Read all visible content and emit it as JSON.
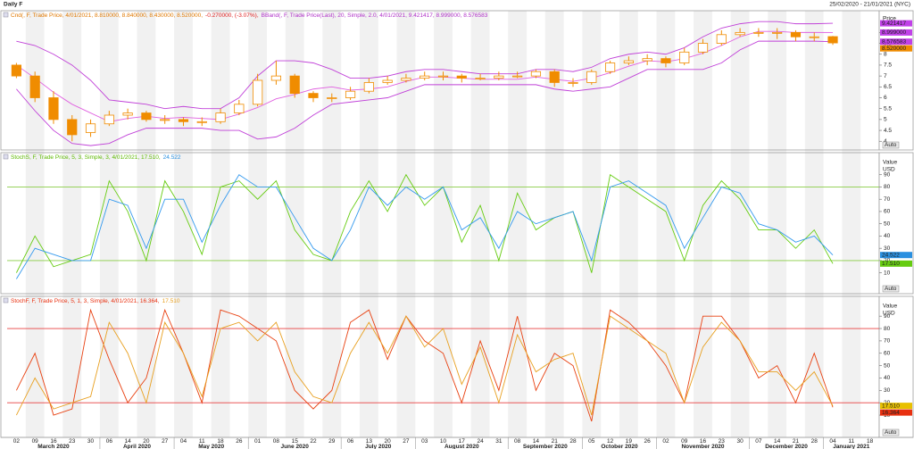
{
  "header": {
    "title": "Daily F",
    "range": "25/02/2020 - 21/01/2021 (NYC)"
  },
  "chart_data": [
    {
      "type": "candlestick",
      "legend": [
        {
          "text": "Cnd(, F, Trade Price,  4/01/2021, 8.810000, 8.840000, 8.430000, 8.520000,",
          "color": "#e07800"
        },
        {
          "text": "-0.270000, (-3.07%),",
          "color": "#e02020"
        },
        {
          "text": "BBand(, F, Trade Price(Last),  20, Simple, 2.0,  4/01/2021, 9.421417, 8.999000, 8.576583",
          "color": "#b030c8"
        }
      ],
      "axis_label": "Price",
      "auto": "Auto",
      "categories": [
        "02",
        "09",
        "16",
        "23",
        "30",
        "06",
        "14",
        "20",
        "27",
        "04",
        "11",
        "18",
        "26",
        "01",
        "08",
        "15",
        "22",
        "29",
        "06",
        "13",
        "20",
        "27",
        "03",
        "10",
        "17",
        "24",
        "31",
        "08",
        "14",
        "21",
        "28",
        "05",
        "12",
        "19",
        "26",
        "02",
        "09",
        "16",
        "23",
        "30",
        "07",
        "14",
        "21",
        "28",
        "04",
        "11",
        "18"
      ],
      "x_groups": [
        "March 2020",
        "April 2020",
        "May 2020",
        "June 2020",
        "July 2020",
        "August 2020",
        "September 2020",
        "October 2020",
        "November 2020",
        "December 2020",
        "January 2021"
      ],
      "candles": {
        "color": "#f08c00",
        "open": [
          7.5,
          7.0,
          6.0,
          5.0,
          4.4,
          4.8,
          5.2,
          5.3,
          5.0,
          5.0,
          4.9,
          4.9,
          5.3,
          5.7,
          6.8,
          7.0,
          6.2,
          6.0,
          6.0,
          6.3,
          6.7,
          6.8,
          6.9,
          7.0,
          7.0,
          6.9,
          6.9,
          7.0,
          7.0,
          7.2,
          6.7,
          6.7,
          7.2,
          7.6,
          7.7,
          7.8,
          7.6,
          8.1,
          8.5,
          8.9,
          9.0,
          9.0,
          9.0,
          8.8,
          8.81,
          null,
          null
        ],
        "high": [
          7.6,
          7.2,
          6.3,
          5.2,
          5.0,
          5.4,
          5.5,
          5.4,
          5.2,
          5.1,
          5.1,
          5.5,
          5.9,
          7.1,
          7.7,
          7.1,
          6.3,
          6.2,
          6.5,
          6.9,
          7.0,
          7.1,
          7.2,
          7.2,
          7.1,
          7.1,
          7.2,
          7.2,
          7.3,
          7.3,
          6.9,
          7.3,
          7.7,
          7.9,
          8.0,
          7.9,
          8.3,
          8.7,
          9.1,
          9.2,
          9.2,
          9.2,
          9.1,
          9.0,
          8.84,
          null,
          null
        ],
        "low": [
          6.9,
          5.8,
          4.8,
          4.0,
          4.2,
          4.7,
          5.0,
          4.9,
          4.8,
          4.7,
          4.7,
          4.8,
          5.2,
          5.6,
          6.6,
          6.0,
          5.8,
          5.8,
          5.9,
          6.2,
          6.6,
          6.7,
          6.8,
          6.8,
          6.7,
          6.8,
          6.8,
          6.9,
          6.9,
          6.5,
          6.5,
          6.6,
          7.1,
          7.5,
          7.5,
          7.4,
          7.5,
          8.0,
          8.4,
          8.8,
          8.8,
          8.7,
          8.6,
          8.6,
          8.43,
          null,
          null
        ],
        "close": [
          7.0,
          6.0,
          5.0,
          4.3,
          4.8,
          5.2,
          5.3,
          5.0,
          5.0,
          4.9,
          4.9,
          5.3,
          5.7,
          6.8,
          7.0,
          6.2,
          6.0,
          6.0,
          6.3,
          6.7,
          6.8,
          6.9,
          7.0,
          7.0,
          6.9,
          6.9,
          7.0,
          7.0,
          7.2,
          6.7,
          6.7,
          7.2,
          7.6,
          7.7,
          7.8,
          7.6,
          8.1,
          8.5,
          8.9,
          9.0,
          9.0,
          9.0,
          8.8,
          8.8,
          8.52,
          null,
          null
        ]
      },
      "series": [
        {
          "color": "#c040d8",
          "values": [
            8.6,
            8.4,
            8.0,
            7.5,
            6.8,
            5.9,
            5.8,
            5.7,
            5.5,
            5.6,
            5.5,
            5.5,
            6.0,
            7.0,
            7.7,
            7.7,
            7.6,
            7.3,
            6.9,
            6.9,
            7.0,
            7.2,
            7.3,
            7.3,
            7.2,
            7.1,
            7.1,
            7.1,
            7.3,
            7.3,
            7.2,
            7.4,
            7.8,
            8.0,
            8.1,
            8.0,
            8.3,
            8.8,
            9.2,
            9.4,
            9.5,
            9.5,
            9.4,
            9.4,
            9.421417,
            null,
            null
          ]
        },
        {
          "color": "#e060e0",
          "values": [
            7.5,
            6.9,
            6.25,
            5.7,
            5.3,
            4.9,
            5.05,
            5.15,
            5.05,
            5.1,
            5.05,
            5.0,
            5.25,
            5.55,
            5.95,
            6.15,
            6.4,
            6.5,
            6.35,
            6.4,
            6.5,
            6.75,
            6.95,
            6.95,
            6.9,
            6.85,
            6.85,
            6.85,
            6.95,
            6.85,
            6.75,
            6.9,
            7.15,
            7.45,
            7.7,
            7.65,
            7.8,
            8.05,
            8.4,
            8.8,
            9.05,
            9.05,
            9.0,
            9.0,
            8.999,
            null,
            null
          ]
        },
        {
          "color": "#c040d8",
          "values": [
            6.4,
            5.4,
            4.5,
            3.9,
            3.8,
            3.9,
            4.3,
            4.6,
            4.6,
            4.6,
            4.6,
            4.5,
            4.5,
            4.1,
            4.2,
            4.6,
            5.2,
            5.7,
            5.8,
            5.9,
            6.0,
            6.3,
            6.6,
            6.6,
            6.6,
            6.6,
            6.6,
            6.6,
            6.6,
            6.4,
            6.3,
            6.4,
            6.5,
            6.9,
            7.3,
            7.3,
            7.3,
            7.3,
            7.6,
            8.2,
            8.6,
            8.6,
            8.6,
            8.6,
            8.576583,
            null,
            null
          ]
        }
      ],
      "ylim": [
        3.6,
        10
      ],
      "yticks": [
        4,
        4.5,
        5,
        5.5,
        6,
        6.5,
        7,
        7.5,
        8,
        8.5,
        9
      ],
      "badges": [
        {
          "value": 9.421417,
          "color": "#c040e8"
        },
        {
          "value": 8.999,
          "label": "8.999000",
          "color": "#c040e8"
        },
        {
          "value": 8.576583,
          "color": "#c040e8"
        },
        {
          "value": 8.52,
          "label": "8.520000",
          "color": "#f08c00"
        }
      ]
    },
    {
      "type": "line",
      "legend": [
        {
          "text": "StochS, F, Trade Price,  5, 3, Simple, 3,  4/01/2021, 17.510,",
          "color": "#5cb800"
        },
        {
          "text": "24.522",
          "color": "#2a90e0"
        }
      ],
      "axis_label": "Value",
      "unit": "USD",
      "auto": "Auto",
      "series": [
        {
          "color": "#66cc11",
          "values": [
            10,
            40,
            15,
            20,
            25,
            85,
            60,
            20,
            85,
            60,
            25,
            80,
            85,
            70,
            85,
            45,
            25,
            20,
            60,
            85,
            60,
            90,
            65,
            80,
            35,
            65,
            20,
            75,
            45,
            55,
            60,
            10,
            90,
            80,
            70,
            60,
            20,
            65,
            85,
            70,
            45,
            45,
            30,
            45,
            17.51,
            null,
            null
          ]
        },
        {
          "color": "#3399ee",
          "values": [
            5,
            30,
            25,
            20,
            20,
            70,
            65,
            30,
            70,
            70,
            35,
            65,
            90,
            80,
            80,
            55,
            30,
            20,
            45,
            80,
            65,
            80,
            70,
            80,
            45,
            55,
            30,
            60,
            50,
            55,
            60,
            20,
            80,
            85,
            75,
            65,
            30,
            55,
            80,
            75,
            50,
            45,
            35,
            40,
            24.522,
            null,
            null
          ]
        }
      ],
      "hlines": [
        20,
        80
      ],
      "hline_color": "#88cc44",
      "ylim": [
        -7,
        108
      ],
      "yticks": [
        10,
        20,
        30,
        40,
        50,
        60,
        70,
        80,
        90
      ],
      "badges": [
        {
          "value": 24.522,
          "color": "#2a90e0"
        },
        {
          "value": 17.51,
          "label": "17.510",
          "color": "#66cc11"
        }
      ]
    },
    {
      "type": "line",
      "legend": [
        {
          "text": "StochF, F, Trade Price,  5, 1, 3, Simple,  4/01/2021, 16.364,",
          "color": "#e83010"
        },
        {
          "text": "17.510",
          "color": "#e8a020"
        }
      ],
      "axis_label": "Value",
      "unit": "USD",
      "auto": "Auto",
      "series": [
        {
          "color": "#e84010",
          "values": [
            30,
            60,
            10,
            15,
            95,
            55,
            20,
            40,
            95,
            60,
            20,
            95,
            90,
            80,
            70,
            30,
            15,
            30,
            85,
            95,
            55,
            90,
            70,
            60,
            20,
            70,
            30,
            90,
            30,
            60,
            50,
            5,
            95,
            85,
            70,
            50,
            20,
            90,
            90,
            70,
            40,
            50,
            20,
            60,
            16.364,
            null,
            null
          ]
        },
        {
          "color": "#e8a020",
          "values": [
            10,
            40,
            15,
            20,
            25,
            85,
            60,
            20,
            85,
            60,
            25,
            80,
            85,
            70,
            85,
            45,
            25,
            20,
            60,
            85,
            60,
            90,
            65,
            80,
            35,
            65,
            20,
            75,
            45,
            55,
            60,
            10,
            90,
            80,
            70,
            60,
            20,
            65,
            85,
            70,
            45,
            45,
            30,
            45,
            17.51,
            null,
            null
          ]
        }
      ],
      "hlines": [
        20,
        80
      ],
      "hline_color": "#e84040",
      "ylim": [
        -8,
        106
      ],
      "yticks": [
        10,
        20,
        30,
        40,
        50,
        60,
        70,
        80,
        90
      ],
      "badges": [
        {
          "value": 17.51,
          "label": "17.510",
          "color": "#e8c000"
        },
        {
          "value": 16.364,
          "color": "#e83010"
        }
      ]
    }
  ]
}
